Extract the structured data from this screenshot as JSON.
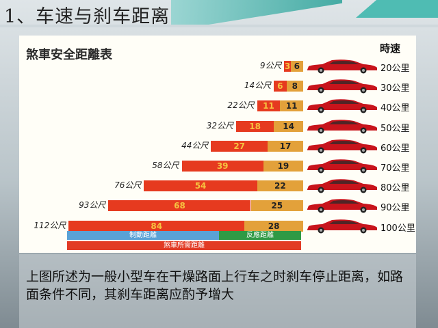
{
  "slide": {
    "title": "1、车速与刹车距离"
  },
  "chart": {
    "title": "煞車安全距離表",
    "speed_header": "時速",
    "rows": [
      {
        "total": "9公尺",
        "brake": "3",
        "react": "6",
        "speed": "20公里"
      },
      {
        "total": "14公尺",
        "brake": "6",
        "react": "8",
        "speed": "30公里"
      },
      {
        "total": "22公尺",
        "brake": "11",
        "react": "11",
        "speed": "40公里"
      },
      {
        "total": "32公尺",
        "brake": "18",
        "react": "14",
        "speed": "50公里"
      },
      {
        "total": "44公尺",
        "brake": "27",
        "react": "17",
        "speed": "60公里"
      },
      {
        "total": "58公尺",
        "brake": "39",
        "react": "19",
        "speed": "70公里"
      },
      {
        "total": "76公尺",
        "brake": "54",
        "react": "22",
        "speed": "80公里"
      },
      {
        "total": "93公尺",
        "brake": "68",
        "react": "25",
        "speed": "90公里"
      },
      {
        "total": "112公尺",
        "brake": "84",
        "react": "28",
        "speed": "100公里"
      }
    ],
    "legend": {
      "brake": "制動距離",
      "react": "反應距離",
      "total": "煞車所需距離"
    },
    "colors": {
      "brake": "#e63a1f",
      "react": "#e3a13a",
      "legend_blue": "#5aa2d6",
      "legend_green": "#2f9a45",
      "car": "#c8141c"
    }
  },
  "caption": "上图所述为一般小型车在干燥路面上行车之时刹车停止距离，如路面条件不同，其刹车距离应酌予增大"
}
